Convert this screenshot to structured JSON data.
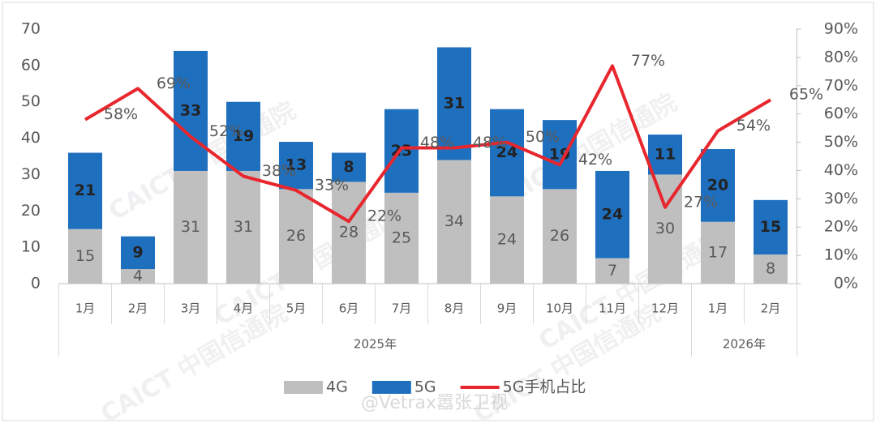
{
  "chart_data": {
    "type": "bar-line",
    "groups": [
      {
        "label": "2025年",
        "categories": [
          "1月",
          "2月",
          "3月",
          "4月",
          "5月",
          "6月",
          "7月",
          "8月",
          "9月",
          "10月",
          "11月",
          "12月"
        ]
      },
      {
        "label": "2026年",
        "categories": [
          "1月",
          "2月"
        ]
      }
    ],
    "series": [
      {
        "name": "4G",
        "color": "#bfbfbf",
        "values": [
          15,
          4,
          31,
          31,
          26,
          28,
          25,
          34,
          24,
          26,
          7,
          30,
          17,
          8
        ]
      },
      {
        "name": "5G",
        "color": "#1f6fbf",
        "values": [
          21,
          9,
          33,
          19,
          13,
          8,
          23,
          31,
          24,
          19,
          24,
          11,
          20,
          15
        ]
      },
      {
        "name": "5G手机占比",
        "color": "#e8262d",
        "axis": "y2",
        "values": [
          58,
          69,
          52,
          38,
          33,
          22,
          48,
          48,
          50,
          42,
          77,
          27,
          54,
          65
        ],
        "value_labels": [
          "58%",
          "69%",
          "52%",
          "38%",
          "33%",
          "22%",
          "48%",
          "48%",
          "50%",
          "42%",
          "77%",
          "27%",
          "54%",
          "65%"
        ]
      }
    ],
    "ylim": [
      0,
      70
    ],
    "yticks": [
      0,
      10,
      20,
      30,
      40,
      50,
      60,
      70
    ],
    "y2lim": [
      0,
      90
    ],
    "y2ticks": [
      {
        "value": 0,
        "label": "0%"
      },
      {
        "value": 10,
        "label": "10%"
      },
      {
        "value": 20,
        "label": "20%"
      },
      {
        "value": 30,
        "label": "30%"
      },
      {
        "value": 40,
        "label": "40%"
      },
      {
        "value": 50,
        "label": "50%"
      },
      {
        "value": 60,
        "label": "60%"
      },
      {
        "value": 70,
        "label": "70%"
      },
      {
        "value": 80,
        "label": "80%"
      },
      {
        "value": 90,
        "label": "90%"
      }
    ],
    "legend": "bottom",
    "watermark": "@Vetrax嚣张卫视",
    "logo_watermark": "CAICT 中国信通院"
  }
}
